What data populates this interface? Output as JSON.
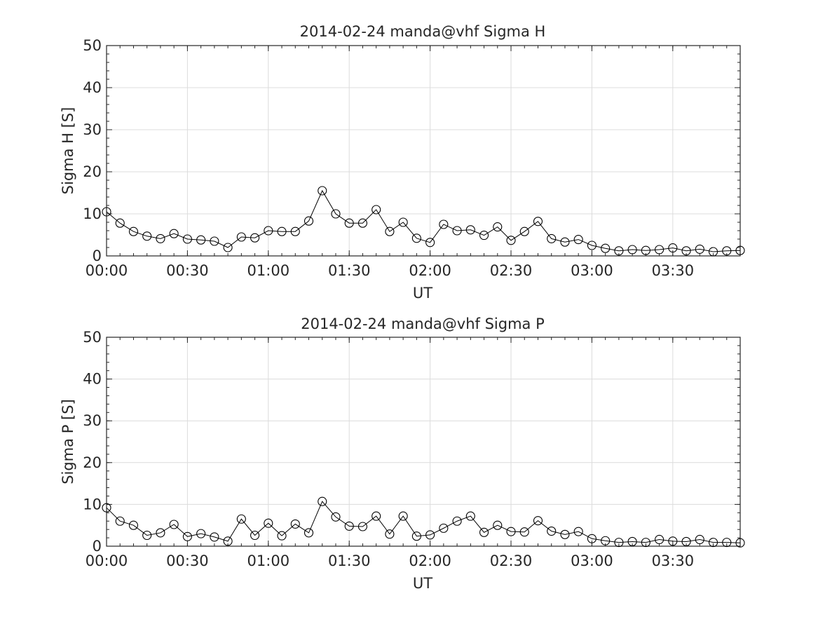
{
  "chart_data": [
    {
      "type": "line",
      "title": "2014-02-24  manda@vhf Sigma H",
      "xlabel": "UT",
      "ylabel": "Sigma H [S]",
      "xlim": [
        "00:00",
        "03:55"
      ],
      "ylim": [
        0,
        50
      ],
      "xticks": [
        "00:00",
        "00:30",
        "01:00",
        "01:30",
        "02:00",
        "02:30",
        "03:00",
        "03:30"
      ],
      "yticks": [
        "0",
        "10",
        "20",
        "30",
        "40",
        "50"
      ],
      "grid": true,
      "marker": "circle",
      "line_color": "#000000",
      "x": [
        "00:00",
        "00:05",
        "00:10",
        "00:15",
        "00:20",
        "00:25",
        "00:30",
        "00:35",
        "00:40",
        "00:45",
        "00:50",
        "00:55",
        "01:00",
        "01:05",
        "01:10",
        "01:15",
        "01:20",
        "01:25",
        "01:30",
        "01:35",
        "01:40",
        "01:45",
        "01:50",
        "01:55",
        "02:00",
        "02:05",
        "02:10",
        "02:15",
        "02:20",
        "02:25",
        "02:30",
        "02:35",
        "02:40",
        "02:45",
        "02:50",
        "02:55",
        "03:00",
        "03:05",
        "03:10",
        "03:15",
        "03:20",
        "03:25",
        "03:30",
        "03:35",
        "03:40",
        "03:45",
        "03:50",
        "03:55"
      ],
      "values": [
        10.5,
        7.8,
        5.8,
        4.7,
        4.1,
        5.3,
        4.0,
        3.8,
        3.5,
        2.0,
        4.5,
        4.3,
        6.0,
        5.8,
        5.8,
        8.3,
        15.5,
        10.0,
        7.8,
        7.8,
        11.0,
        5.8,
        8.0,
        4.2,
        3.2,
        7.5,
        6.0,
        6.2,
        4.9,
        6.9,
        3.7,
        5.8,
        8.2,
        4.1,
        3.3,
        3.9,
        2.5,
        1.8,
        1.2,
        1.5,
        1.3,
        1.5,
        1.9,
        1.2,
        1.6,
        1.0,
        1.2,
        1.3
      ]
    },
    {
      "type": "line",
      "title": "2014-02-24  manda@vhf Sigma P",
      "xlabel": "UT",
      "ylabel": "Sigma P [S]",
      "xlim": [
        "00:00",
        "03:55"
      ],
      "ylim": [
        0,
        50
      ],
      "xticks": [
        "00:00",
        "00:30",
        "01:00",
        "01:30",
        "02:00",
        "02:30",
        "03:00",
        "03:30"
      ],
      "yticks": [
        "0",
        "10",
        "20",
        "30",
        "40",
        "50"
      ],
      "grid": true,
      "marker": "circle",
      "line_color": "#000000",
      "x": [
        "00:00",
        "00:05",
        "00:10",
        "00:15",
        "00:20",
        "00:25",
        "00:30",
        "00:35",
        "00:40",
        "00:45",
        "00:50",
        "00:55",
        "01:00",
        "01:05",
        "01:10",
        "01:15",
        "01:20",
        "01:25",
        "01:30",
        "01:35",
        "01:40",
        "01:45",
        "01:50",
        "01:55",
        "02:00",
        "02:05",
        "02:10",
        "02:15",
        "02:20",
        "02:25",
        "02:30",
        "02:35",
        "02:40",
        "02:45",
        "02:50",
        "02:55",
        "03:00",
        "03:05",
        "03:10",
        "03:15",
        "03:20",
        "03:25",
        "03:30",
        "03:35",
        "03:40",
        "03:45",
        "03:50",
        "03:55"
      ],
      "values": [
        9.2,
        6.0,
        5.0,
        2.6,
        3.2,
        5.2,
        2.3,
        3.0,
        2.2,
        1.2,
        6.5,
        2.6,
        5.5,
        2.5,
        5.3,
        3.2,
        10.7,
        7.0,
        4.8,
        4.7,
        7.2,
        2.9,
        7.2,
        2.4,
        2.7,
        4.3,
        6.0,
        7.2,
        3.3,
        5.0,
        3.5,
        3.4,
        6.1,
        3.6,
        2.8,
        3.5,
        1.8,
        1.3,
        0.9,
        1.1,
        0.9,
        1.6,
        1.2,
        1.1,
        1.6,
        0.9,
        0.9,
        0.8
      ]
    }
  ]
}
